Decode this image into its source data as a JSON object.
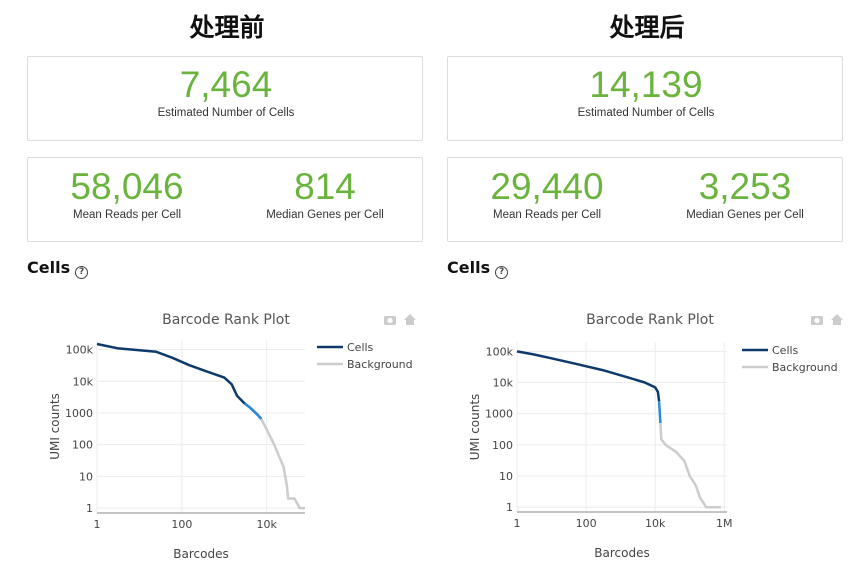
{
  "panels": [
    {
      "heading": "处理前",
      "estimated_cells": {
        "value": "7,464",
        "label": "Estimated Number of Cells"
      },
      "mean_reads": {
        "value": "58,046",
        "label": "Mean Reads per Cell"
      },
      "median_genes": {
        "value": "814",
        "label": "Median Genes per Cell"
      },
      "section_title": "Cells",
      "help_icon": "?"
    },
    {
      "heading": "处理后",
      "estimated_cells": {
        "value": "14,139",
        "label": "Estimated Number of Cells"
      },
      "mean_reads": {
        "value": "29,440",
        "label": "Mean Reads per Cell"
      },
      "median_genes": {
        "value": "3,253",
        "label": "Median Genes per Cell"
      },
      "section_title": "Cells",
      "help_icon": "?"
    }
  ],
  "chart_data": [
    {
      "type": "line",
      "title": "Barcode Rank Plot",
      "xlabel": "Barcodes",
      "ylabel": "UMI counts",
      "xscale": "log",
      "yscale": "log",
      "xlim": [
        1,
        80000
      ],
      "ylim": [
        0.7,
        200000
      ],
      "x_ticks": [
        "1",
        "100",
        "10k"
      ],
      "y_ticks": [
        "1",
        "10",
        "100",
        "1000",
        "10k",
        "100k"
      ],
      "legend": "top-right",
      "series": [
        {
          "name": "Cells",
          "color": "#0e3a6b",
          "points": [
            [
              1,
              150000
            ],
            [
              3,
              110000
            ],
            [
              10,
              95000
            ],
            [
              25,
              85000
            ],
            [
              60,
              55000
            ],
            [
              150,
              32000
            ],
            [
              400,
              20000
            ],
            [
              1000,
              13000
            ],
            [
              1500,
              8000
            ],
            [
              2000,
              3500
            ],
            [
              3000,
              2000
            ],
            [
              4000,
              1500
            ],
            [
              6000,
              900
            ],
            [
              7464,
              650
            ]
          ]
        },
        {
          "name": "Cells",
          "color": "#2a8cd8",
          "points": [
            [
              3000,
              2000
            ],
            [
              4000,
              1500
            ],
            [
              6000,
              900
            ],
            [
              7464,
              650
            ]
          ]
        },
        {
          "name": "Background",
          "color": "#cccccc",
          "points": [
            [
              7464,
              650
            ],
            [
              10000,
              300
            ],
            [
              15000,
              100
            ],
            [
              20000,
              40
            ],
            [
              25000,
              20
            ],
            [
              30000,
              5
            ],
            [
              32000,
              2
            ],
            [
              45000,
              2
            ],
            [
              60000,
              1
            ],
            [
              80000,
              1
            ]
          ]
        }
      ]
    },
    {
      "type": "line",
      "title": "Barcode Rank Plot",
      "xlabel": "Barcodes",
      "ylabel": "UMI counts",
      "xscale": "log",
      "yscale": "log",
      "xlim": [
        1,
        1200000
      ],
      "ylim": [
        0.7,
        200000
      ],
      "x_ticks": [
        "1",
        "100",
        "10k",
        "1M"
      ],
      "y_ticks": [
        "1",
        "10",
        "100",
        "1000",
        "10k",
        "100k"
      ],
      "legend": "top-right",
      "series": [
        {
          "name": "Cells",
          "color": "#0e3a6b",
          "points": [
            [
              1,
              100000
            ],
            [
              3,
              80000
            ],
            [
              10,
              60000
            ],
            [
              50,
              40000
            ],
            [
              300,
              25000
            ],
            [
              1500,
              15000
            ],
            [
              5000,
              10000
            ],
            [
              10000,
              7000
            ],
            [
              12000,
              5000
            ],
            [
              13000,
              2500
            ]
          ]
        },
        {
          "name": "Cells",
          "color": "#2a8cd8",
          "points": [
            [
              13000,
              2500
            ],
            [
              14139,
              500
            ]
          ]
        },
        {
          "name": "Background",
          "color": "#cccccc",
          "points": [
            [
              14139,
              500
            ],
            [
              15000,
              150
            ],
            [
              20000,
              100
            ],
            [
              40000,
              60
            ],
            [
              70000,
              30
            ],
            [
              100000,
              10
            ],
            [
              150000,
              5
            ],
            [
              200000,
              2
            ],
            [
              300000,
              1
            ],
            [
              800000,
              1
            ]
          ]
        }
      ]
    }
  ]
}
